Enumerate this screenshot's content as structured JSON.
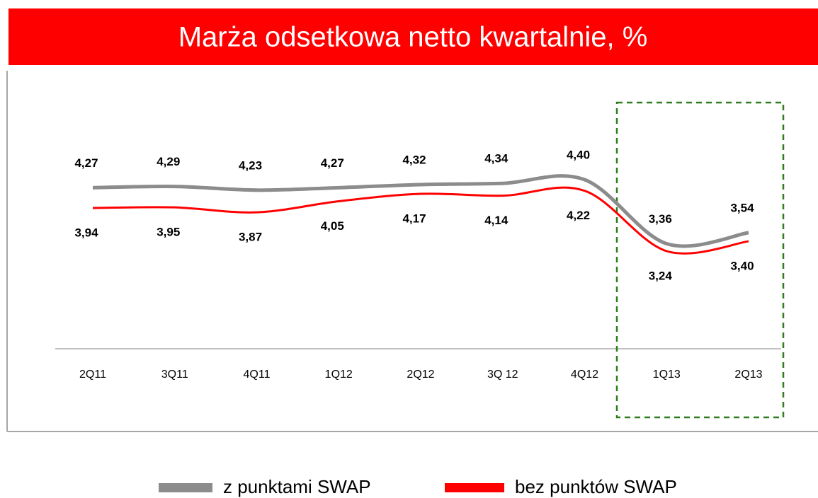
{
  "chart_data": {
    "type": "line",
    "title": "Marża odsetkowa netto kwartalnie, %",
    "categories": [
      "2Q11",
      "3Q11",
      "4Q11",
      "1Q12",
      "2Q12",
      "3Q 12",
      "4Q12",
      "1Q13",
      "2Q13"
    ],
    "series": [
      {
        "name": "z punktami SWAP",
        "color": "#8c8c8c",
        "values": [
          4.27,
          4.29,
          4.23,
          4.27,
          4.32,
          4.34,
          4.4,
          3.36,
          3.54
        ],
        "value_labels": [
          "4,27",
          "4,29",
          "4,23",
          "4,27",
          "4,32",
          "4,34",
          "4,40",
          "3,36",
          "3,54"
        ]
      },
      {
        "name": "bez punktów SWAP",
        "color": "#ff0000",
        "values": [
          3.94,
          3.95,
          3.87,
          4.05,
          4.17,
          4.14,
          4.22,
          3.24,
          3.4
        ],
        "value_labels": [
          "3,94",
          "3,95",
          "3,87",
          "4,05",
          "4,17",
          "4,14",
          "4,22",
          "3,24",
          "3,40"
        ]
      }
    ]
  }
}
